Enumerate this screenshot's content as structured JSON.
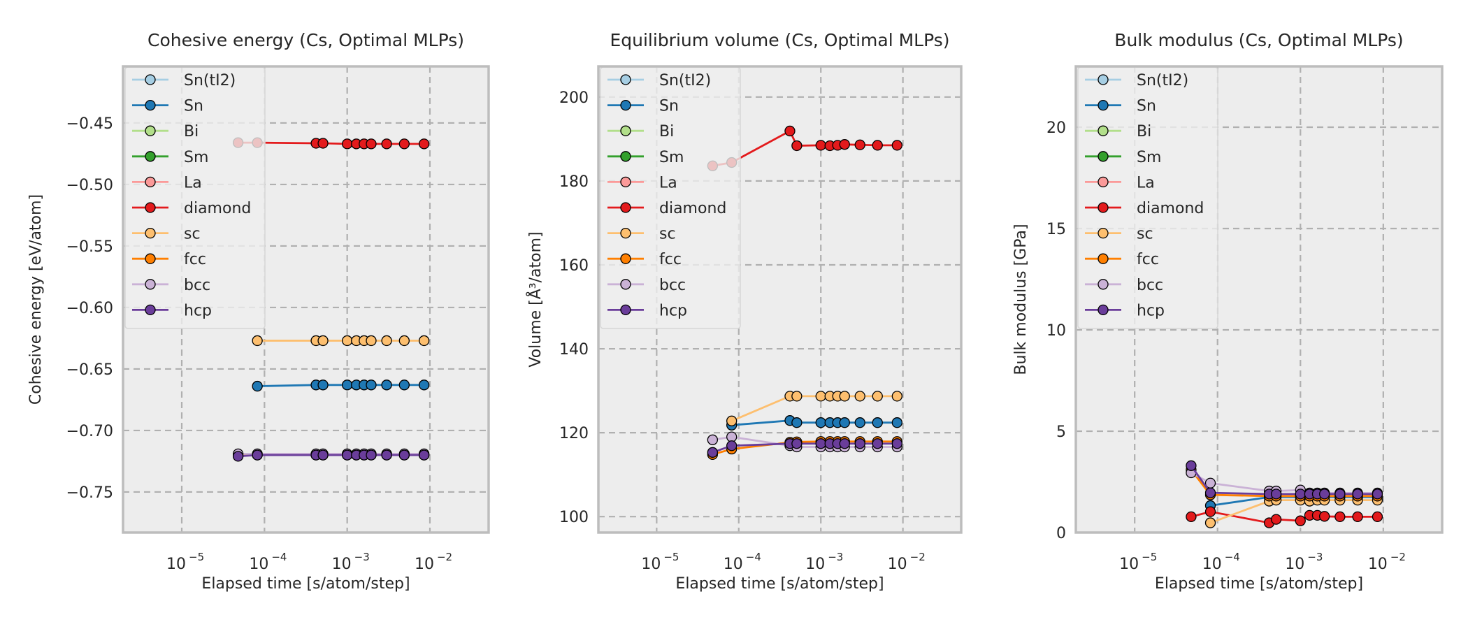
{
  "chart_data": [
    {
      "type": "line",
      "title": "Cohesive energy (Cs, Optimal MLPs)",
      "xlabel": "Elapsed time [s/atom/step]",
      "ylabel": "Cohesive energy [eV/atom]",
      "xscale": "log",
      "xlim_log10": [
        -5.71,
        -1.29
      ],
      "ylim": [
        -0.783,
        -0.404
      ],
      "yticks": [
        -0.75,
        -0.7,
        -0.65,
        -0.6,
        -0.55,
        -0.5,
        -0.45
      ],
      "ytick_labels": [
        "−0.75",
        "−0.70",
        "−0.65",
        "−0.60",
        "−0.55",
        "−0.50",
        "−0.45"
      ],
      "xticks_log10": [
        -5,
        -4,
        -3,
        -2
      ],
      "xtick_base": "10",
      "xtick_exponents": [
        "−5",
        "−4",
        "−3",
        "−2"
      ],
      "grid": true,
      "legend_position": "upper-left",
      "x": [
        4.8e-05,
        8.2e-05,
        0.00042,
        0.00051,
        0.001,
        0.00129,
        0.0016,
        0.00195,
        0.003,
        0.0049,
        0.0085
      ],
      "series": [
        {
          "name": "Sn",
          "values": [
            null,
            -0.664,
            -0.663,
            -0.663,
            -0.663,
            -0.663,
            -0.663,
            -0.663,
            -0.663,
            -0.663,
            -0.663
          ]
        },
        {
          "name": "diamond",
          "values": [
            -0.466,
            -0.466,
            -0.4665,
            -0.4665,
            -0.467,
            -0.467,
            -0.467,
            -0.467,
            -0.467,
            -0.467,
            -0.467
          ]
        },
        {
          "name": "sc",
          "values": [
            null,
            -0.627,
            -0.627,
            -0.627,
            -0.627,
            -0.627,
            -0.627,
            -0.627,
            -0.627,
            -0.627,
            -0.627
          ]
        },
        {
          "name": "fcc",
          "values": [
            -0.7205,
            -0.72,
            -0.72,
            -0.72,
            -0.72,
            -0.72,
            -0.72,
            -0.72,
            -0.72,
            -0.72,
            -0.72
          ]
        },
        {
          "name": "bcc",
          "values": [
            -0.719,
            -0.719,
            -0.719,
            -0.719,
            -0.719,
            -0.719,
            -0.719,
            -0.719,
            -0.719,
            -0.719,
            -0.719
          ]
        },
        {
          "name": "hcp",
          "values": [
            -0.721,
            -0.72,
            -0.72,
            -0.72,
            -0.72,
            -0.72,
            -0.72,
            -0.72,
            -0.72,
            -0.72,
            -0.72
          ]
        }
      ]
    },
    {
      "type": "line",
      "title": "Equilibrium volume (Cs, Optimal MLPs)",
      "xlabel": "Elapsed time [s/atom/step]",
      "ylabel": "Volume [Å³/atom]",
      "xscale": "log",
      "xlim_log10": [
        -5.71,
        -1.29
      ],
      "ylim": [
        96.2,
        207.3
      ],
      "yticks": [
        100,
        120,
        140,
        160,
        180,
        200
      ],
      "ytick_labels": [
        "100",
        "120",
        "140",
        "160",
        "180",
        "200"
      ],
      "xticks_log10": [
        -5,
        -4,
        -3,
        -2
      ],
      "xtick_base": "10",
      "xtick_exponents": [
        "−5",
        "−4",
        "−3",
        "−2"
      ],
      "grid": true,
      "legend_position": "upper-left",
      "x": [
        4.8e-05,
        8.2e-05,
        0.00042,
        0.00051,
        0.001,
        0.00129,
        0.0016,
        0.00195,
        0.003,
        0.0049,
        0.0085
      ],
      "series": [
        {
          "name": "Sn",
          "values": [
            null,
            121.8,
            122.9,
            122.4,
            122.4,
            122.4,
            122.4,
            122.4,
            122.4,
            122.4,
            122.4
          ]
        },
        {
          "name": "diamond",
          "values": [
            183.6,
            184.4,
            191.9,
            188.4,
            188.5,
            188.4,
            188.5,
            188.7,
            188.6,
            188.5,
            188.5
          ]
        },
        {
          "name": "sc",
          "values": [
            null,
            122.8,
            128.7,
            128.7,
            128.7,
            128.7,
            128.7,
            128.7,
            128.7,
            128.7,
            128.7
          ]
        },
        {
          "name": "fcc",
          "values": [
            114.8,
            116.1,
            117.7,
            117.8,
            117.9,
            117.9,
            117.9,
            117.9,
            117.9,
            117.9,
            117.9
          ]
        },
        {
          "name": "bcc",
          "values": [
            118.3,
            119.0,
            116.9,
            116.6,
            116.6,
            116.6,
            116.6,
            116.6,
            116.6,
            116.6,
            116.6
          ]
        },
        {
          "name": "hcp",
          "values": [
            115.3,
            116.9,
            117.4,
            117.4,
            117.4,
            117.4,
            117.4,
            117.4,
            117.4,
            117.4,
            117.4
          ]
        }
      ]
    },
    {
      "type": "line",
      "title": "Bulk modulus (Cs, Optimal MLPs)",
      "xlabel": "Elapsed time [s/atom/step]",
      "ylabel": "Bulk modulus [GPa]",
      "xscale": "log",
      "xlim_log10": [
        -5.71,
        -1.29
      ],
      "ylim": [
        0,
        23.0
      ],
      "yticks": [
        0,
        5,
        10,
        15,
        20
      ],
      "ytick_labels": [
        "0",
        "5",
        "10",
        "15",
        "20"
      ],
      "xticks_log10": [
        -5,
        -4,
        -3,
        -2
      ],
      "xtick_base": "10",
      "xtick_exponents": [
        "−5",
        "−4",
        "−3",
        "−2"
      ],
      "grid": true,
      "legend_position": "upper-left",
      "x": [
        4.8e-05,
        8.2e-05,
        0.00042,
        0.00051,
        0.001,
        0.00129,
        0.0016,
        0.00195,
        0.003,
        0.0049,
        0.0085
      ],
      "series": [
        {
          "name": "Sn",
          "values": [
            null,
            1.33,
            1.75,
            1.75,
            1.75,
            1.75,
            1.75,
            1.75,
            1.75,
            1.75,
            1.75
          ]
        },
        {
          "name": "diamond",
          "values": [
            0.78,
            1.03,
            0.48,
            0.65,
            0.58,
            0.85,
            0.85,
            0.8,
            0.78,
            0.78,
            0.78
          ]
        },
        {
          "name": "sc",
          "values": [
            null,
            0.48,
            1.55,
            1.6,
            1.6,
            1.55,
            1.6,
            1.6,
            1.6,
            1.6,
            1.6
          ]
        },
        {
          "name": "fcc",
          "values": [
            3.1,
            1.86,
            1.8,
            1.8,
            1.8,
            1.8,
            1.8,
            1.8,
            1.8,
            1.8,
            1.8
          ]
        },
        {
          "name": "bcc",
          "values": [
            2.95,
            2.44,
            2.05,
            2.05,
            2.1,
            1.95,
            1.95,
            1.95,
            1.95,
            1.95,
            1.95
          ]
        },
        {
          "name": "hcp",
          "values": [
            3.3,
            1.96,
            1.9,
            1.9,
            1.9,
            1.9,
            1.9,
            1.9,
            1.9,
            1.9,
            1.9
          ]
        }
      ]
    }
  ],
  "legend": {
    "entries": [
      {
        "name": "Sn(tI2)",
        "color": "#a6cee3"
      },
      {
        "name": "Sn",
        "color": "#1f78b4"
      },
      {
        "name": "Bi",
        "color": "#b2df8a"
      },
      {
        "name": "Sm",
        "color": "#33a02c"
      },
      {
        "name": "La",
        "color": "#fb9a99"
      },
      {
        "name": "diamond",
        "color": "#e31a1c"
      },
      {
        "name": "sc",
        "color": "#fdbf6f"
      },
      {
        "name": "fcc",
        "color": "#ff7f00"
      },
      {
        "name": "bcc",
        "color": "#cab2d6"
      },
      {
        "name": "hcp",
        "color": "#6a3d9a"
      }
    ]
  },
  "colors": {
    "axes_bg": "#ededed",
    "frame": "#bdbdbd",
    "grid": "#b0b0b0",
    "marker_edge": "#000000"
  }
}
